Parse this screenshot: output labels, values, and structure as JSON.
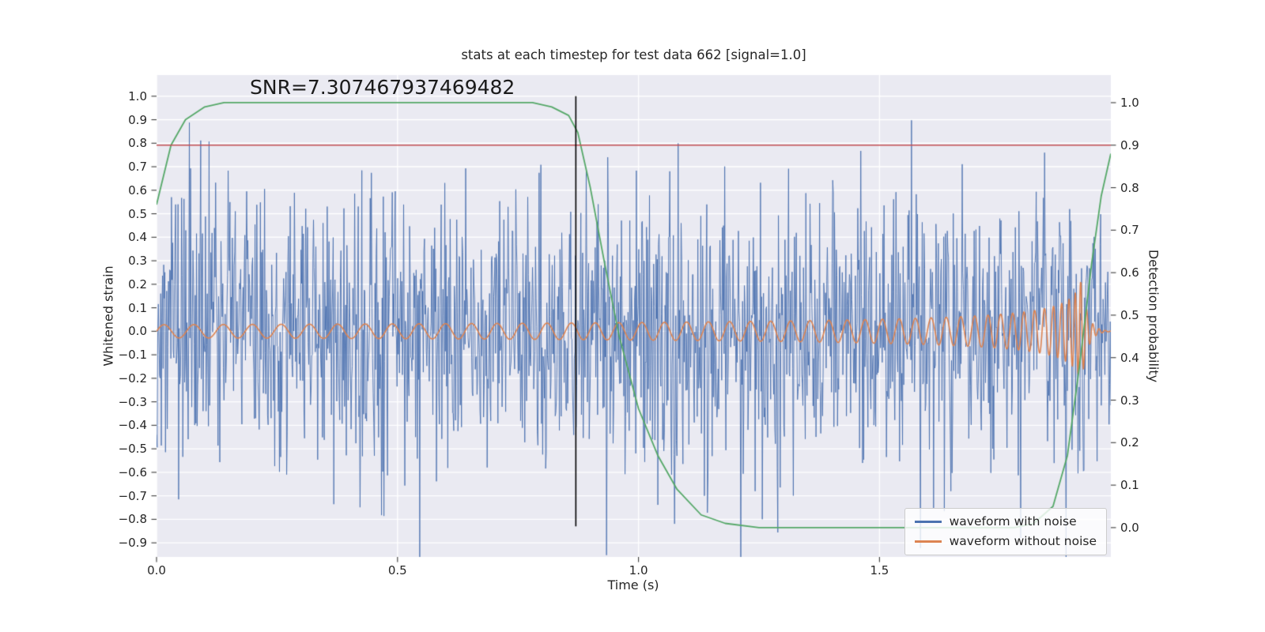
{
  "title": "stats at each timestep for test data 662 [signal=1.0]",
  "annotation": {
    "snr_text": "SNR=7.307467937469482"
  },
  "axes": {
    "xlabel": "Time (s)",
    "ylabel_left": "Whitened strain",
    "ylabel_right": "Detection probability"
  },
  "legend": {
    "items": [
      {
        "label": "waveform with noise",
        "color": "#4c72b0"
      },
      {
        "label": "waveform without noise",
        "color": "#dd8452"
      }
    ]
  },
  "chart_data": {
    "type": "line",
    "title": "stats at each timestep for test data 662 [signal=1.0]",
    "xlabel": "Time (s)",
    "ylabel": "Whitened strain",
    "ylabel_right": "Detection probability",
    "xlim": [
      0,
      1.98
    ],
    "ylim_left": [
      -0.96,
      1.09
    ],
    "ylim_right": [
      -0.069,
      1.065
    ],
    "grid": true,
    "legend_position": "lower right",
    "plot_background": "#eaeaf2",
    "grid_color": "#ffffff",
    "text_color": "#262626",
    "x_ticks": {
      "values": [
        0,
        0.5,
        1.0,
        1.5
      ],
      "labels": [
        "0.0",
        "0.5",
        "1.0",
        "1.5"
      ]
    },
    "y_ticks_left": {
      "values": [
        1.0,
        0.9,
        0.8,
        0.7,
        0.6,
        0.5,
        0.4,
        0.3,
        0.2,
        0.1,
        0.0,
        -0.1,
        -0.2,
        -0.3,
        -0.4,
        -0.5,
        -0.6,
        -0.7,
        -0.8,
        -0.9
      ],
      "labels": [
        "1.0",
        "0.9",
        "0.8",
        "0.7",
        "0.6",
        "0.5",
        "0.4",
        "0.3",
        "0.2",
        "0.1",
        "0.0",
        "−0.1",
        "−0.2",
        "−0.3",
        "−0.4",
        "−0.5",
        "−0.6",
        "−0.7",
        "−0.8",
        "−0.9"
      ]
    },
    "y_ticks_right": {
      "values": [
        1.0,
        0.9,
        0.8,
        0.7,
        0.6,
        0.5,
        0.4,
        0.3,
        0.2,
        0.1,
        0.0
      ],
      "labels": [
        "1.0",
        "0.9",
        "0.8",
        "0.7",
        "0.6",
        "0.5",
        "0.4",
        "0.3",
        "0.2",
        "0.1",
        "0.0"
      ]
    },
    "series": [
      {
        "name": "waveform with noise",
        "kind": "gaussian_noise_plus_signal",
        "axis": "left",
        "color": "#4c72b0",
        "samples": 1600,
        "noise_std": 0.3,
        "seed": 662
      },
      {
        "name": "waveform without noise",
        "kind": "gw_chirp",
        "axis": "left",
        "color": "#dd8452",
        "samples": 6000,
        "f0_hz": 16,
        "t_coalesce": 1.93,
        "t_merge": 1.918,
        "amp_coef": 0.028,
        "amp_exp": 0.4,
        "amp_peak": 0.25,
        "ringdown_tau": 0.012,
        "ringdown_freq_hz": 78
      },
      {
        "name": "detection probability",
        "kind": "points",
        "axis": "right",
        "color": "#55a868",
        "points": [
          [
            0.0,
            0.76
          ],
          [
            0.03,
            0.9
          ],
          [
            0.06,
            0.96
          ],
          [
            0.1,
            0.99
          ],
          [
            0.14,
            1.0
          ],
          [
            0.78,
            1.0
          ],
          [
            0.82,
            0.99
          ],
          [
            0.855,
            0.97
          ],
          [
            0.874,
            0.93
          ],
          [
            0.9,
            0.8
          ],
          [
            0.93,
            0.62
          ],
          [
            0.96,
            0.45
          ],
          [
            1.0,
            0.28
          ],
          [
            1.04,
            0.17
          ],
          [
            1.08,
            0.09
          ],
          [
            1.13,
            0.03
          ],
          [
            1.18,
            0.01
          ],
          [
            1.25,
            0.0
          ],
          [
            1.78,
            0.0
          ],
          [
            1.82,
            0.01
          ],
          [
            1.86,
            0.05
          ],
          [
            1.89,
            0.17
          ],
          [
            1.915,
            0.38
          ],
          [
            1.94,
            0.62
          ],
          [
            1.96,
            0.78
          ],
          [
            1.98,
            0.88
          ]
        ]
      },
      {
        "name": "detection threshold",
        "kind": "hline",
        "axis": "right",
        "color": "#c44e52",
        "y": 0.9
      },
      {
        "name": "event time marker",
        "kind": "vline",
        "axis": "left",
        "color": "#000000",
        "x": 0.87,
        "y0": -0.83,
        "y1": 1.0
      }
    ]
  }
}
